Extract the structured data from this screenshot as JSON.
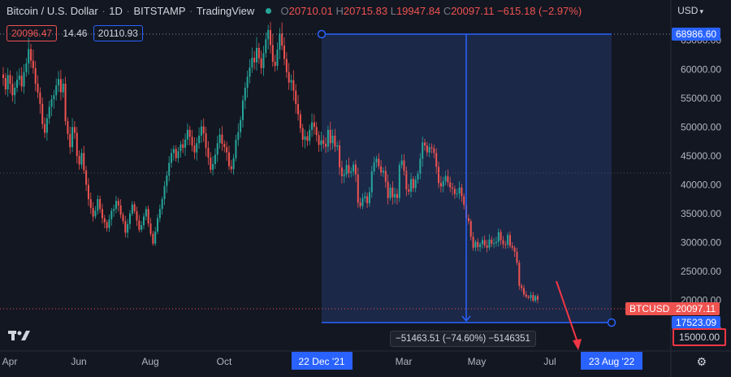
{
  "header": {
    "symbol": "Bitcoin / U.S. Dollar",
    "interval": "1D",
    "exchange": "BITSTAMP",
    "source": "TradingView",
    "open_label": "O",
    "open": "20710.01",
    "high_label": "H",
    "high": "20715.83",
    "low_label": "L",
    "low": "19947.84",
    "close_label": "C",
    "close": "20097.11",
    "change": "−615.18 (−2.97%)"
  },
  "quote": {
    "sell": "20096.47",
    "spread": "14.46",
    "buy": "20110.93"
  },
  "currency": "USD",
  "colors": {
    "up": "#26a69a",
    "down": "#ef5350",
    "accent": "#2962ff",
    "background": "#131722"
  },
  "price_axis": {
    "top_marker": "68986.60",
    "symbol_tag": "BTCUSD",
    "last_price": "20097.11",
    "low_marker": "17523.09",
    "highlighted": "15000.00"
  },
  "time_axis": {
    "start_marker": "22 Dec '21",
    "end_marker": "23 Aug '22"
  },
  "measurement": "−51463.51 (−74.60%) −5146351",
  "chart_data": {
    "type": "candlestick",
    "title": "Bitcoin / U.S. Dollar",
    "xlabel": "",
    "ylabel": "",
    "ylim": [
      11200,
      72000
    ],
    "y_ticks": [
      15000,
      20000,
      25000,
      30000,
      35000,
      40000,
      45000,
      50000,
      55000,
      60000,
      65000
    ],
    "x_ticks": [
      "Apr",
      "Jun",
      "Aug",
      "Oct",
      "Mar",
      "May",
      "Jul"
    ],
    "grid": false,
    "series": [
      {
        "values": [
          58500,
          56500,
          59000,
          57500,
          55500,
          56800,
          58200,
          58900,
          57000,
          59500,
          61000,
          63500,
          61500,
          60200,
          57500,
          56000,
          54000,
          50500,
          49000,
          51500,
          53500,
          54800,
          55500,
          57200,
          58300,
          56000,
          57500,
          51000,
          48800,
          46500,
          50000,
          49000,
          45000,
          43500,
          45500,
          42500,
          40000,
          37500,
          36000,
          34500,
          35500,
          37500,
          35800,
          34200,
          33500,
          32500,
          34000,
          35500,
          35800,
          37200,
          36400,
          34800,
          33700,
          31700,
          33200,
          35000,
          36600,
          35400,
          33800,
          32200,
          33000,
          34500,
          35800,
          33300,
          31500,
          29800,
          31900,
          34200,
          35800,
          37500,
          39800,
          41600,
          43800,
          45500,
          46200,
          44600,
          45800,
          47000,
          46400,
          47800,
          49500,
          48300,
          46800,
          45600,
          47200,
          48500,
          50100,
          48900,
          46400,
          44700,
          42600,
          43600,
          45200,
          47200,
          48700,
          47100,
          46500,
          45600,
          43200,
          42700,
          44600,
          47800,
          49100,
          51200,
          54600,
          56800,
          58700,
          60300,
          62000,
          61200,
          63700,
          61900,
          60200,
          62800,
          65200,
          66800,
          64200,
          61300,
          60600,
          63400,
          66200,
          64100,
          61800,
          59500,
          57700,
          58100,
          56300,
          54000,
          52200,
          49800,
          47800,
          48400,
          47600,
          49500,
          50800,
          50000,
          48600,
          46900,
          47700,
          47100,
          46600,
          49500,
          47200,
          48500,
          46600,
          46800,
          43000,
          41500,
          41800,
          43400,
          42000,
          42300,
          43500,
          41800,
          36900,
          36300,
          37700,
          38000,
          36800,
          38700,
          42300,
          43900,
          44500,
          43200,
          42100,
          42400,
          40500,
          37700,
          39500,
          37800,
          38400,
          37700,
          43400,
          44200,
          42400,
          39200,
          38800,
          41000,
          39400,
          40900,
          41900,
          44500,
          47300,
          46800,
          45600,
          46500,
          46300,
          45500,
          43100,
          40300,
          39700,
          40600,
          41500,
          40400,
          39500,
          39300,
          38400,
          38500,
          39500,
          38000,
          36500,
          34200,
          33700,
          31000,
          29100,
          30100,
          29200,
          29700,
          30400,
          29500,
          29100,
          30500,
          29800,
          29900,
          30100,
          31800,
          30400,
          29700,
          29600,
          31300,
          29400,
          29100,
          28400,
          26500,
          22500,
          22100,
          21000,
          20600,
          20400,
          20900,
          19900,
          20700,
          20100
        ]
      }
    ]
  }
}
